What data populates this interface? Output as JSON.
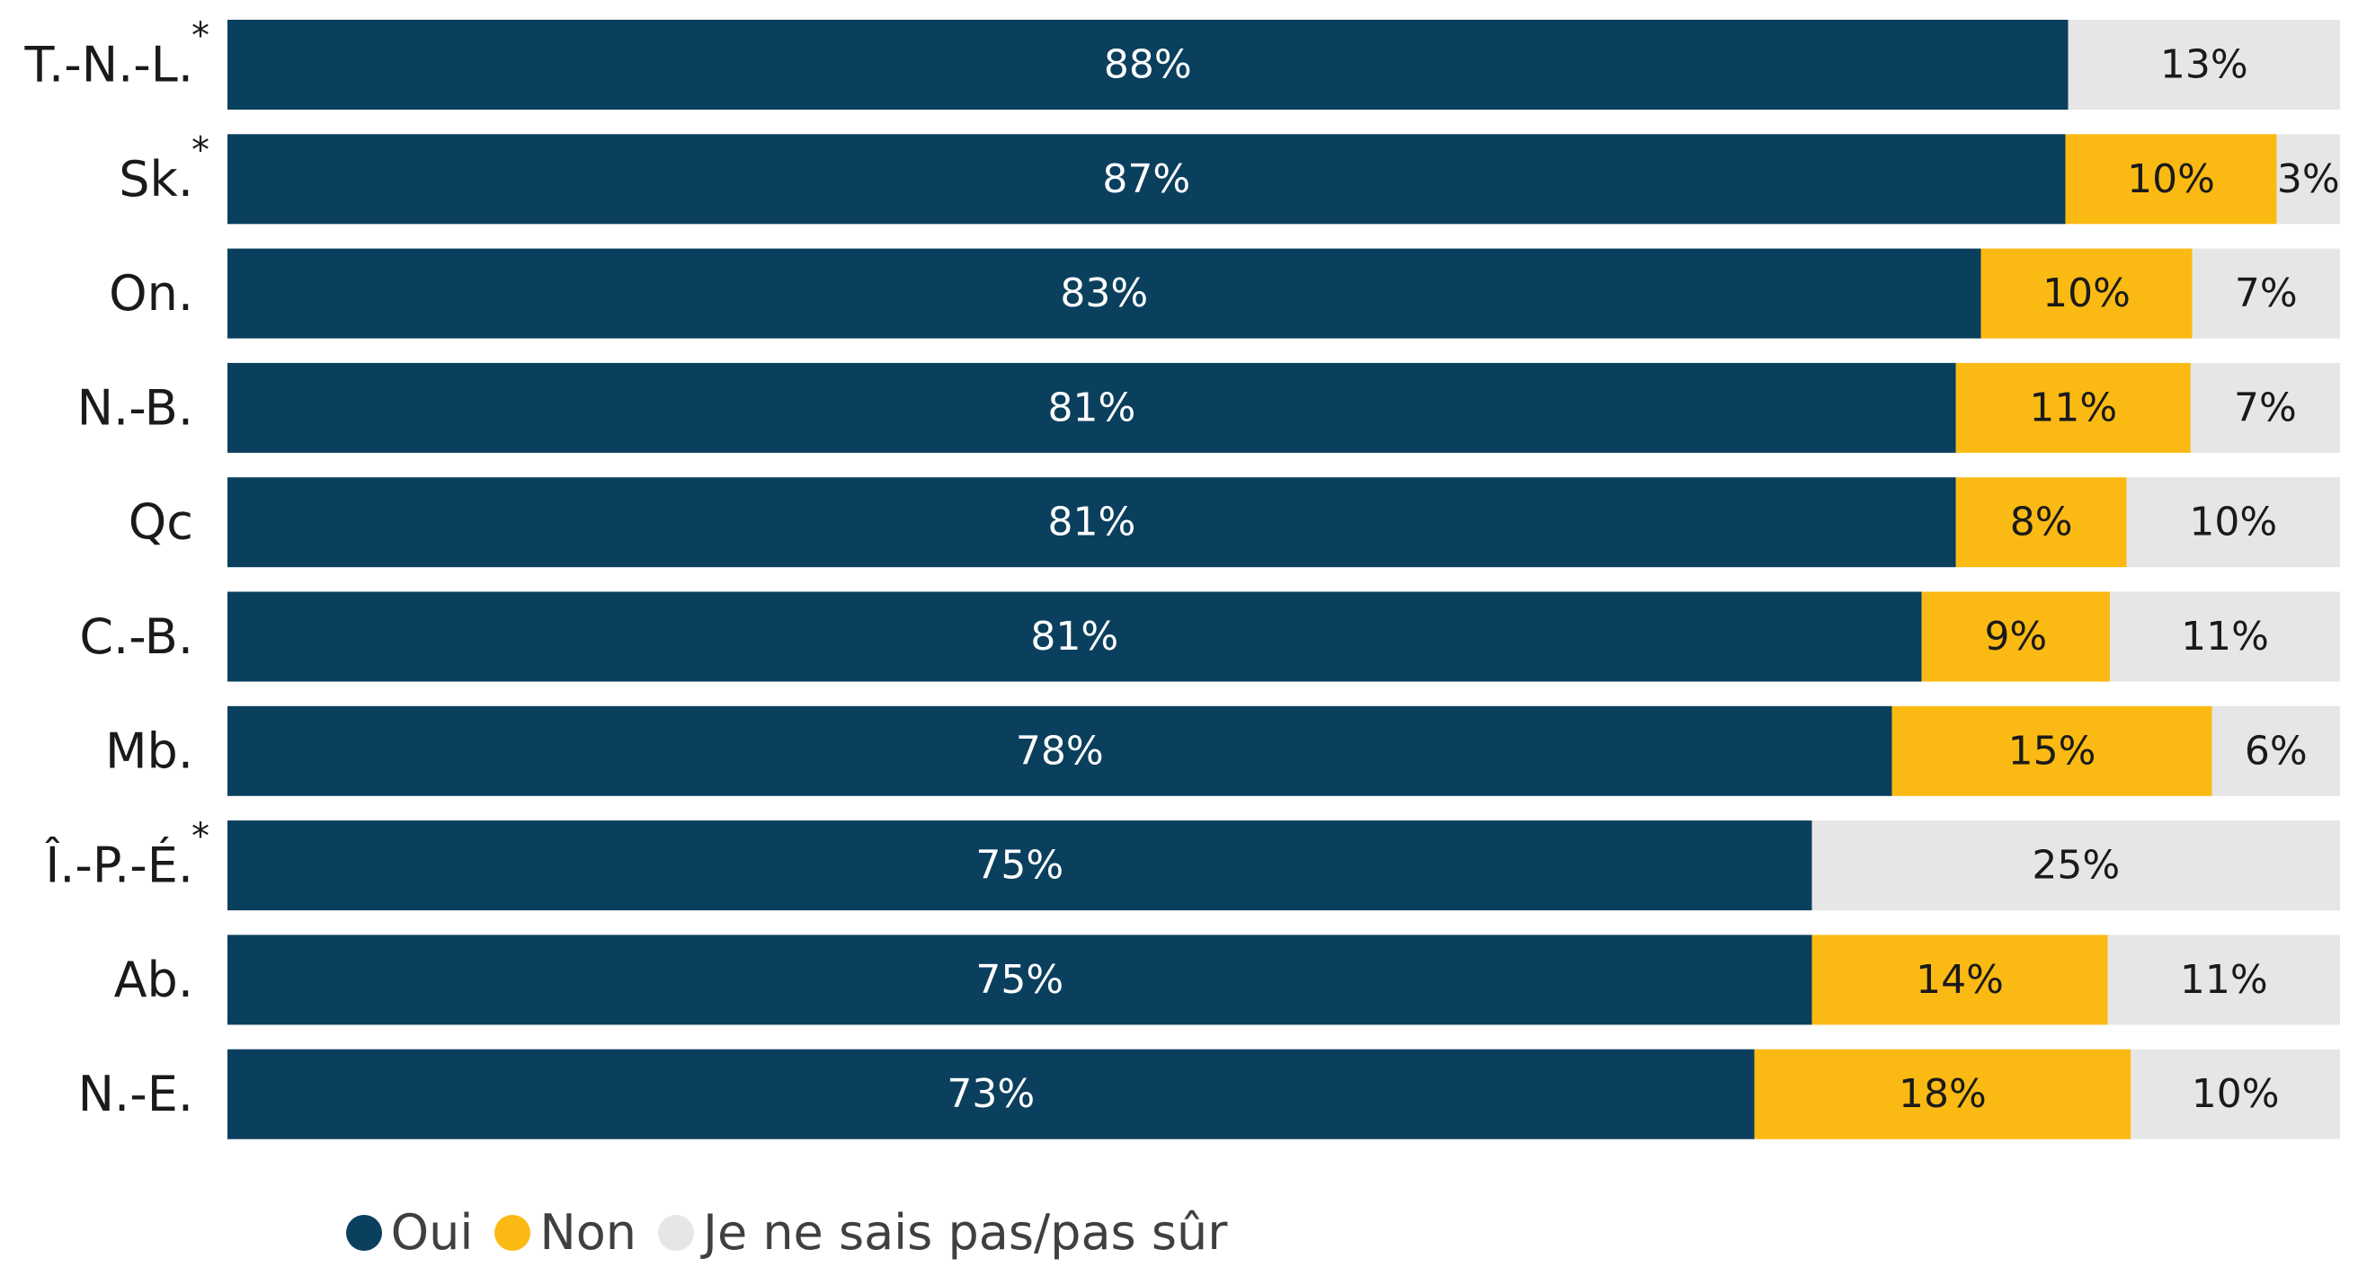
{
  "chart_data": {
    "type": "bar",
    "orientation": "horizontal",
    "stacked": true,
    "categories": [
      "T.-N.-L.",
      "Sk.",
      "On.",
      "N.-B.",
      "Qc",
      "C.-B.",
      "Mb.",
      "Î.-P.-É.",
      "Ab.",
      "N.-E."
    ],
    "asterisk": [
      true,
      true,
      false,
      false,
      false,
      false,
      false,
      true,
      false,
      false
    ],
    "series": [
      {
        "name": "Oui",
        "color": "#0b3f5e",
        "text_color": "#ffffff",
        "values": [
          88,
          87,
          83,
          81,
          81,
          81,
          78,
          75,
          75,
          73
        ],
        "labels": [
          "88%",
          "87%",
          "83%",
          "81%",
          "81%",
          "81%",
          "78%",
          "75%",
          "75%",
          "73%"
        ]
      },
      {
        "name": "Non",
        "color": "#fbba13",
        "text_color": "#1a1a1a",
        "values": [
          0,
          10,
          10,
          11,
          8,
          9,
          15,
          0,
          14,
          18
        ],
        "labels": [
          "",
          "10%",
          "10%",
          "11%",
          "8%",
          "9%",
          "15%",
          "",
          "14%",
          "18%"
        ]
      },
      {
        "name": "Je ne sais pas/pas sûr",
        "color": "#e6e6e6",
        "text_color": "#1a1a1a",
        "values": [
          13,
          3,
          7,
          7,
          10,
          11,
          6,
          25,
          11,
          10
        ],
        "labels": [
          "13%",
          "3%",
          "7%",
          "7%",
          "10%",
          "11%",
          "6%",
          "25%",
          "11%",
          "10%"
        ]
      }
    ],
    "asterisk_symbol": "*",
    "legend_position": "bottom",
    "grid": false
  }
}
